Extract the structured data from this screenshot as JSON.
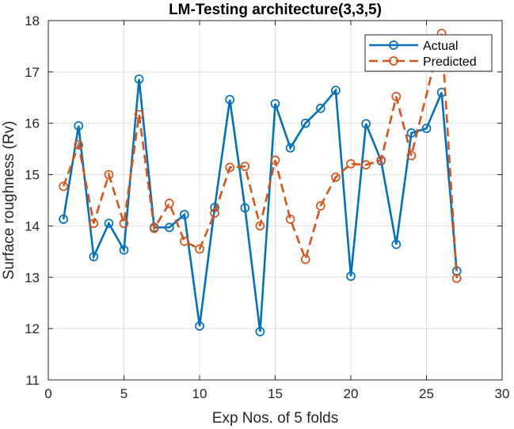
{
  "chart_data": {
    "type": "line",
    "title": "LM-Testing architecture(3,3,5)",
    "xlabel": "Exp Nos. of 5 folds",
    "ylabel": "Surface roughness (Rv)",
    "xlim": [
      0,
      30
    ],
    "ylim": [
      11,
      18
    ],
    "xticks": [
      "0",
      "5",
      "10",
      "15",
      "20",
      "25",
      "30"
    ],
    "yticks": [
      "11",
      "12",
      "13",
      "14",
      "15",
      "16",
      "17",
      "18"
    ],
    "grid": true,
    "legend_position": "top-right",
    "x": [
      1,
      2,
      3,
      4,
      5,
      6,
      7,
      8,
      9,
      10,
      11,
      12,
      13,
      14,
      15,
      16,
      17,
      18,
      19,
      20,
      21,
      22,
      23,
      24,
      25,
      26,
      27
    ],
    "series": [
      {
        "name": "Actual",
        "color": "#0072bd",
        "style": "solid",
        "marker": "circle",
        "values": [
          14.13,
          15.95,
          13.4,
          14.05,
          13.53,
          16.86,
          13.97,
          13.97,
          14.22,
          12.05,
          14.36,
          16.46,
          14.35,
          11.94,
          16.38,
          15.52,
          16.0,
          16.29,
          16.64,
          13.02,
          15.99,
          15.27,
          13.64,
          15.81,
          15.9,
          16.6,
          13.12
        ]
      },
      {
        "name": "Predicted",
        "color": "#d95319",
        "style": "dashed",
        "marker": "circle",
        "values": [
          14.77,
          15.58,
          14.05,
          15.0,
          14.05,
          16.17,
          13.95,
          14.44,
          13.7,
          13.55,
          14.25,
          15.14,
          15.16,
          14.0,
          15.28,
          14.13,
          13.35,
          14.39,
          14.95,
          15.21,
          15.19,
          15.28,
          16.52,
          15.37,
          null,
          17.75,
          12.98
        ]
      }
    ]
  }
}
